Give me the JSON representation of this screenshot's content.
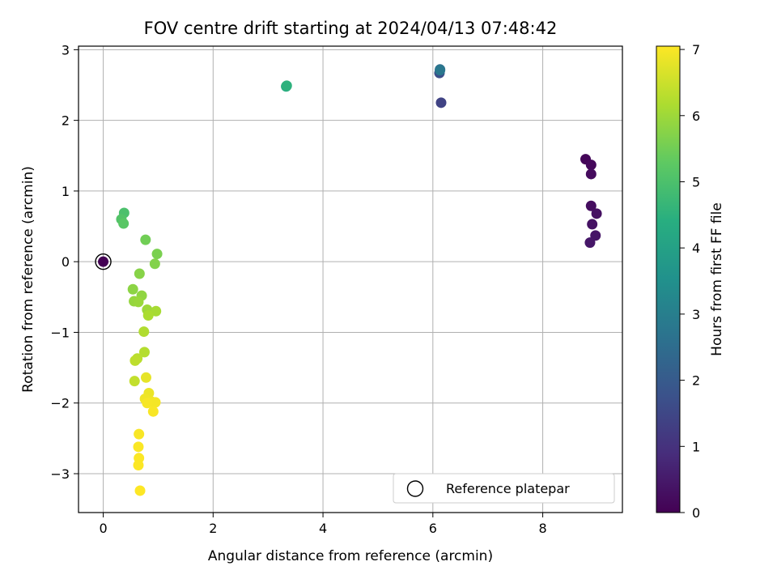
{
  "chart_data": {
    "type": "scatter",
    "title": "FOV centre drift starting at 2024/04/13 07:48:42",
    "xlabel": "Angular distance from reference (arcmin)",
    "ylabel": "Rotation from reference (arcmin)",
    "xlim": [
      -0.45,
      9.45
    ],
    "ylim": [
      -3.55,
      3.05
    ],
    "xticks": [
      0,
      2,
      4,
      6,
      8
    ],
    "yticks": [
      -3,
      -2,
      -1,
      0,
      1,
      2,
      3
    ],
    "xtick_labels": [
      "0",
      "2",
      "4",
      "6",
      "8"
    ],
    "ytick_labels": [
      "−3",
      "−2",
      "−1",
      "0",
      "1",
      "2",
      "3"
    ],
    "grid": true,
    "colorbar": {
      "label": "Hours from first FF file",
      "colormap": "viridis",
      "range": [
        0,
        7.05
      ],
      "ticks": [
        0,
        1,
        2,
        3,
        4,
        5,
        6,
        7
      ],
      "tick_labels": [
        "0",
        "1",
        "2",
        "3",
        "4",
        "5",
        "6",
        "7"
      ]
    },
    "legend": {
      "position": "lower-right",
      "entries": [
        {
          "label": "Reference platepar",
          "marker": "open-circle"
        }
      ]
    },
    "reference_point": {
      "x": 0,
      "y": 0
    },
    "points": [
      {
        "x": 0.0,
        "y": 0.0,
        "c": 0.0
      },
      {
        "x": 8.78,
        "y": 1.45,
        "c": 0.1
      },
      {
        "x": 8.88,
        "y": 1.37,
        "c": 0.15
      },
      {
        "x": 8.88,
        "y": 1.24,
        "c": 0.2
      },
      {
        "x": 8.88,
        "y": 0.79,
        "c": 0.25
      },
      {
        "x": 8.98,
        "y": 0.68,
        "c": 0.3
      },
      {
        "x": 8.9,
        "y": 0.53,
        "c": 0.35
      },
      {
        "x": 8.96,
        "y": 0.37,
        "c": 0.4
      },
      {
        "x": 8.86,
        "y": 0.27,
        "c": 0.45
      },
      {
        "x": 6.15,
        "y": 2.25,
        "c": 1.4
      },
      {
        "x": 6.12,
        "y": 2.67,
        "c": 1.7
      },
      {
        "x": 6.13,
        "y": 2.72,
        "c": 2.5
      },
      {
        "x": 6.13,
        "y": 2.71,
        "c": 2.8
      },
      {
        "x": 3.33,
        "y": 2.48,
        "c": 4.3
      },
      {
        "x": 3.34,
        "y": 2.49,
        "c": 4.5
      },
      {
        "x": 0.38,
        "y": 0.69,
        "c": 5.0
      },
      {
        "x": 0.33,
        "y": 0.6,
        "c": 5.1
      },
      {
        "x": 0.37,
        "y": 0.54,
        "c": 5.2
      },
      {
        "x": 0.77,
        "y": 0.31,
        "c": 5.5
      },
      {
        "x": 0.98,
        "y": 0.11,
        "c": 5.6
      },
      {
        "x": 0.94,
        "y": -0.03,
        "c": 5.7
      },
      {
        "x": 0.66,
        "y": -0.17,
        "c": 5.75
      },
      {
        "x": 0.54,
        "y": -0.39,
        "c": 5.8
      },
      {
        "x": 0.7,
        "y": -0.48,
        "c": 5.85
      },
      {
        "x": 0.56,
        "y": -0.56,
        "c": 5.9
      },
      {
        "x": 0.64,
        "y": -0.57,
        "c": 5.95
      },
      {
        "x": 0.8,
        "y": -0.68,
        "c": 6.0
      },
      {
        "x": 0.96,
        "y": -0.7,
        "c": 6.1
      },
      {
        "x": 0.82,
        "y": -0.76,
        "c": 6.15
      },
      {
        "x": 0.74,
        "y": -0.99,
        "c": 6.2
      },
      {
        "x": 0.75,
        "y": -1.28,
        "c": 6.25
      },
      {
        "x": 0.62,
        "y": -1.37,
        "c": 6.3
      },
      {
        "x": 0.58,
        "y": -1.4,
        "c": 6.35
      },
      {
        "x": 0.57,
        "y": -1.69,
        "c": 6.4
      },
      {
        "x": 0.78,
        "y": -1.64,
        "c": 6.8
      },
      {
        "x": 0.83,
        "y": -1.86,
        "c": 6.85
      },
      {
        "x": 0.76,
        "y": -1.94,
        "c": 6.9
      },
      {
        "x": 0.88,
        "y": -1.98,
        "c": 6.92
      },
      {
        "x": 0.95,
        "y": -1.99,
        "c": 6.95
      },
      {
        "x": 0.8,
        "y": -2.0,
        "c": 6.97
      },
      {
        "x": 0.91,
        "y": -2.12,
        "c": 7.0
      },
      {
        "x": 0.65,
        "y": -2.44,
        "c": 7.0
      },
      {
        "x": 0.64,
        "y": -2.62,
        "c": 7.02
      },
      {
        "x": 0.65,
        "y": -2.78,
        "c": 7.03
      },
      {
        "x": 0.64,
        "y": -2.88,
        "c": 7.04
      },
      {
        "x": 0.67,
        "y": -3.24,
        "c": 7.05
      }
    ]
  }
}
